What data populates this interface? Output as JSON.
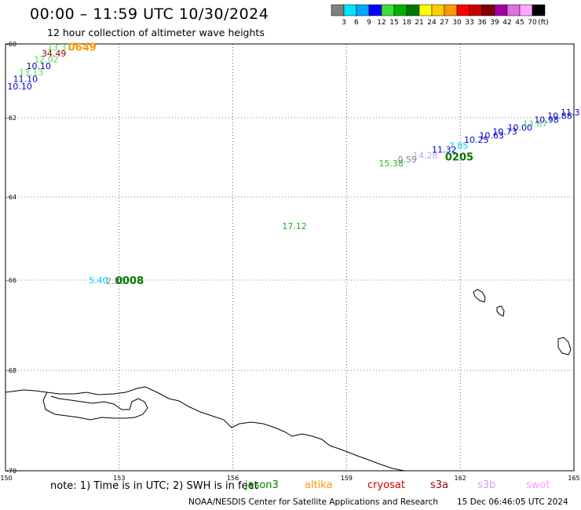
{
  "header": {
    "title": "00:00 – 11:59 UTC 10/30/2024",
    "subtitle": "12 hour collection of altimeter wave heights"
  },
  "colorbar": {
    "ticks": [
      "3",
      "6",
      "9",
      "12",
      "15",
      "18",
      "21",
      "24",
      "27",
      "30",
      "33",
      "36",
      "39",
      "42",
      "45",
      "70"
    ],
    "unit": "(ft)",
    "colors": [
      "#808080",
      "#00e5ff",
      "#00a8ff",
      "#0000ff",
      "#38e038",
      "#00b000",
      "#007800",
      "#ffff00",
      "#ffcc00",
      "#ff9900",
      "#ff0000",
      "#c80000",
      "#800000",
      "#a000a0",
      "#e070e0",
      "#ffa8ff",
      "#000000"
    ]
  },
  "axes": {
    "y_ticks": [
      "-60",
      "-62",
      "-64",
      "-66",
      "-68",
      "-70"
    ],
    "x_ticks": [
      "150",
      "153",
      "156",
      "159",
      "162",
      "165"
    ]
  },
  "observations": [
    {
      "text": "13.37",
      "color": "#5cd65c",
      "lat": -60.08,
      "lon": 151.1
    },
    {
      "text": "34.49",
      "color": "#990000",
      "lat": -60.25,
      "lon": 150.95
    },
    {
      "text": "12.02",
      "color": "#5cd65c",
      "lat": -60.42,
      "lon": 150.75
    },
    {
      "text": "10.10",
      "color": "#0000cc",
      "lat": -60.6,
      "lon": 150.55
    },
    {
      "text": "13.13",
      "color": "#5cd65c",
      "lat": -60.77,
      "lon": 150.35
    },
    {
      "text": "11.10",
      "color": "#0000cc",
      "lat": -60.95,
      "lon": 150.2
    },
    {
      "text": "10.10",
      "color": "#0000cc",
      "lat": -61.15,
      "lon": 150.05
    },
    {
      "text": "15.38",
      "color": "#33b033",
      "lat": -63.15,
      "lon": 159.85
    },
    {
      "text": "0.59",
      "color": "#808080",
      "lat": -63.05,
      "lon": 160.35
    },
    {
      "text": "14.28",
      "color": "#c8a0ff",
      "lat": -62.95,
      "lon": 160.75
    },
    {
      "text": "11.32",
      "color": "#0000cc",
      "lat": -62.8,
      "lon": 161.25
    },
    {
      "text": "7.85",
      "color": "#00ccff",
      "lat": -62.7,
      "lon": 161.7
    },
    {
      "text": "10.25",
      "color": "#0000cc",
      "lat": -62.55,
      "lon": 162.1
    },
    {
      "text": "10.63",
      "color": "#0000cc",
      "lat": -62.45,
      "lon": 162.5
    },
    {
      "text": "10.73",
      "color": "#0000cc",
      "lat": -62.35,
      "lon": 162.85
    },
    {
      "text": "10.00",
      "color": "#0000cc",
      "lat": -62.25,
      "lon": 163.25
    },
    {
      "text": "13.87",
      "color": "#5cd65c",
      "lat": -62.15,
      "lon": 163.65
    },
    {
      "text": "10.98",
      "color": "#0000cc",
      "lat": -62.05,
      "lon": 163.95
    },
    {
      "text": "10.88",
      "color": "#0000cc",
      "lat": -61.95,
      "lon": 164.3
    },
    {
      "text": "11.3",
      "color": "#0000cc",
      "lat": -61.85,
      "lon": 164.65
    },
    {
      "text": "17.12",
      "color": "#22b022",
      "lat": -64.7,
      "lon": 157.3
    },
    {
      "text": "5.40",
      "color": "#00d0ff",
      "lat": -66.0,
      "lon": 152.2
    },
    {
      "text": "2.80",
      "color": "#808080",
      "lat": -66.02,
      "lon": 152.65
    }
  ],
  "time_labels": [
    {
      "text": "0649",
      "color": "#ff9900",
      "lat": -60.07,
      "lon": 151.65
    },
    {
      "text": "0205",
      "color": "#007800",
      "lat": -62.98,
      "lon": 161.6
    },
    {
      "text": "0008",
      "color": "#007800",
      "lat": -66.0,
      "lon": 152.9
    }
  ],
  "footer": {
    "note": "note: 1) Time is in UTC; 2) SWH is in feet",
    "satellites": [
      {
        "name": "jason3",
        "color": "#008000"
      },
      {
        "name": "altika",
        "color": "#ff9900"
      },
      {
        "name": "cryosat",
        "color": "#cc0000"
      },
      {
        "name": "s3a",
        "color": "#990000"
      },
      {
        "name": "s3b",
        "color": "#c8a0ff"
      },
      {
        "name": "swot",
        "color": "#ff99ff"
      }
    ],
    "credit": "NOAA/NESDIS Center for Satellite Applications and Research",
    "generated": "15 Dec 06:46:05 UTC 2024"
  }
}
